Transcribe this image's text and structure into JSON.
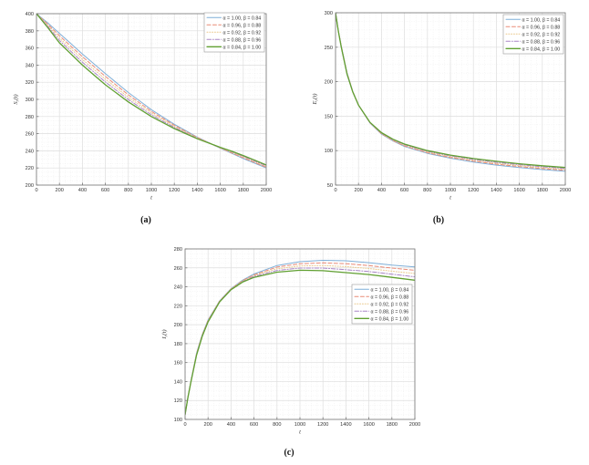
{
  "figure": {
    "captions": {
      "a": "(a)",
      "b": "(b)",
      "c": "(c)"
    }
  },
  "chart_data": [
    {
      "id": "a",
      "type": "line",
      "caption": "(a)",
      "xlabel": "t",
      "ylabel": {
        "base": "S",
        "sub": "r",
        "suffix": "(t)"
      },
      "xlim": [
        0,
        2000
      ],
      "ylim": [
        200,
        400
      ],
      "xticks": [
        0,
        200,
        400,
        600,
        800,
        1000,
        1200,
        1400,
        1600,
        1800,
        2000
      ],
      "yticks": [
        200,
        220,
        240,
        260,
        280,
        300,
        320,
        340,
        360,
        380,
        400
      ],
      "minor_x_step": 50,
      "minor_y_step": 5,
      "grid": "major+minor",
      "legend_position": "top-right",
      "x": [
        0,
        100,
        200,
        300,
        400,
        500,
        600,
        700,
        800,
        900,
        1000,
        1100,
        1200,
        1300,
        1400,
        1500,
        1600,
        1700,
        1800,
        1900,
        2000
      ],
      "series": [
        {
          "name": "α = 1.00, β = 0.84",
          "color": "#7FAFD8",
          "style": "solid",
          "lw": 1.0,
          "values": [
            400,
            389,
            377,
            365,
            353,
            341.5,
            330,
            319,
            308,
            298,
            288,
            279.5,
            271,
            263.5,
            256,
            249.5,
            243,
            237,
            231,
            225.5,
            220
          ]
        },
        {
          "name": "α = 0.96, β = 0.88",
          "color": "#E98B77",
          "style": "dashed",
          "lw": 1.0,
          "values": [
            400,
            387.6,
            374.3,
            362,
            349.8,
            338.3,
            326.8,
            316,
            305.3,
            295.6,
            286,
            277.9,
            269.8,
            262.6,
            255.5,
            249.4,
            243.3,
            237.6,
            231.9,
            226.4,
            220.9
          ]
        },
        {
          "name": "α = 0.92, β = 0.92",
          "color": "#EBC98C",
          "style": "dotted",
          "lw": 1.0,
          "values": [
            400,
            386.3,
            371.5,
            359,
            346.5,
            335,
            323.5,
            313,
            302.5,
            293.3,
            284,
            276.3,
            268.5,
            261.8,
            255,
            249.3,
            243.5,
            238.3,
            232.8,
            227.3,
            221.8
          ]
        },
        {
          "name": "α = 0.88, β = 0.96",
          "color": "#AA86C6",
          "style": "dashdot",
          "lw": 1.0,
          "values": [
            400,
            384.9,
            368.8,
            356,
            343.3,
            331.8,
            320.3,
            310,
            299.8,
            290.9,
            282,
            274.6,
            267.3,
            260.9,
            254.5,
            249.1,
            243.8,
            238.9,
            233.6,
            228.1,
            222.6
          ]
        },
        {
          "name": "α = 0.84, β = 1.00",
          "color": "#61A032",
          "style": "solid",
          "lw": 1.3,
          "values": [
            400,
            383.5,
            366,
            353,
            340,
            328.5,
            317,
            307,
            297,
            288.5,
            280,
            273,
            266,
            260,
            254,
            249,
            244,
            239.5,
            234.5,
            229,
            223.5
          ]
        }
      ]
    },
    {
      "id": "b",
      "type": "line",
      "caption": "(b)",
      "xlabel": "t",
      "ylabel": {
        "base": "E",
        "sub": "r",
        "suffix": "(t)"
      },
      "xlim": [
        0,
        2000
      ],
      "ylim": [
        50,
        300
      ],
      "xticks": [
        0,
        200,
        400,
        600,
        800,
        1000,
        1200,
        1400,
        1600,
        1800,
        2000
      ],
      "yticks": [
        50,
        100,
        150,
        200,
        250,
        300
      ],
      "minor_x_step": 50,
      "minor_y_step": 12.5,
      "grid": "major+minor",
      "legend_position": "top-right",
      "x": [
        0,
        25,
        50,
        100,
        150,
        200,
        300,
        400,
        500,
        600,
        800,
        1000,
        1200,
        1400,
        1600,
        1800,
        2000
      ],
      "series": [
        {
          "name": "α = 1.00, β = 0.84",
          "color": "#7FAFD8",
          "style": "solid",
          "lw": 1.0,
          "values": [
            300,
            274,
            252,
            213,
            186,
            166,
            140,
            124,
            114,
            106,
            96,
            89,
            83.5,
            79,
            75.5,
            72.5,
            70
          ]
        },
        {
          "name": "α = 0.96, β = 0.88",
          "color": "#E98B77",
          "style": "dashed",
          "lw": 1.0,
          "values": [
            300,
            273.8,
            251.5,
            212.5,
            185.8,
            166,
            140.3,
            124.5,
            114.6,
            106.9,
            97,
            90.1,
            84.8,
            80.4,
            76.9,
            73.9,
            71.4
          ]
        },
        {
          "name": "α = 0.92, β = 0.92",
          "color": "#EBC98C",
          "style": "dotted",
          "lw": 1.0,
          "values": [
            300,
            273.6,
            251,
            212,
            185.5,
            166,
            140.5,
            125,
            115.3,
            107.8,
            98,
            91.3,
            86,
            81.8,
            78.3,
            75.3,
            72.8
          ]
        },
        {
          "name": "α = 0.88, β = 0.96",
          "color": "#AA86C6",
          "style": "dashdot",
          "lw": 1.0,
          "values": [
            300,
            273.4,
            250.5,
            211.5,
            185.3,
            166,
            140.8,
            125.5,
            115.9,
            108.6,
            99,
            92.4,
            87.3,
            83.1,
            79.6,
            76.6,
            74.1
          ]
        },
        {
          "name": "α = 0.84, β = 1.00",
          "color": "#61A032",
          "style": "solid",
          "lw": 1.3,
          "values": [
            300,
            273,
            250,
            211,
            185,
            166,
            141,
            126,
            116.5,
            109.5,
            100,
            93.5,
            88.5,
            84.5,
            81,
            78,
            75.5
          ]
        }
      ]
    },
    {
      "id": "c",
      "type": "line",
      "caption": "(c)",
      "xlabel": "t",
      "ylabel": {
        "base": "I",
        "sub": "r",
        "suffix": "(t)"
      },
      "xlim": [
        0,
        2000
      ],
      "ylim": [
        100,
        280
      ],
      "xticks": [
        0,
        200,
        400,
        600,
        800,
        1000,
        1200,
        1400,
        1600,
        1800,
        2000
      ],
      "yticks": [
        100,
        120,
        140,
        160,
        180,
        200,
        220,
        240,
        260,
        280
      ],
      "minor_x_step": 50,
      "minor_y_step": 5,
      "grid": "major+minor",
      "legend_position": "mid-right",
      "x": [
        0,
        25,
        50,
        100,
        150,
        200,
        300,
        400,
        500,
        600,
        800,
        1000,
        1200,
        1400,
        1600,
        1800,
        2000
      ],
      "series": [
        {
          "name": "α = 1.00, β = 0.84",
          "color": "#7FAFD8",
          "style": "solid",
          "lw": 1.0,
          "values": [
            105,
            124,
            140,
            170,
            190,
            205,
            225,
            238,
            247,
            253.5,
            262.5,
            266.5,
            268,
            267.5,
            265.5,
            263,
            261
          ]
        },
        {
          "name": "α = 0.96, β = 0.88",
          "color": "#E98B77",
          "style": "dashed",
          "lw": 1.0,
          "values": [
            105,
            123.8,
            139.8,
            169.5,
            189.5,
            204.5,
            224.8,
            237.8,
            246.5,
            252.6,
            260.8,
            264.3,
            265.3,
            264.4,
            262.4,
            259.8,
            257.5
          ]
        },
        {
          "name": "α = 0.92, β = 0.92",
          "color": "#EBC98C",
          "style": "dotted",
          "lw": 1.0,
          "values": [
            105,
            123.6,
            139.5,
            169,
            189,
            204,
            224.5,
            237.5,
            246,
            251.8,
            259,
            262,
            262.5,
            261.3,
            259.3,
            256.5,
            254
          ]
        },
        {
          "name": "α = 0.88, β = 0.96",
          "color": "#AA86C6",
          "style": "dashdot",
          "lw": 1.0,
          "values": [
            105,
            123.4,
            139.3,
            168.5,
            188.5,
            203.5,
            224.3,
            237.3,
            245.5,
            250.9,
            257.3,
            259.8,
            259.8,
            258.1,
            256.1,
            253.3,
            250.5
          ]
        },
        {
          "name": "α = 0.84, β = 1.00",
          "color": "#61A032",
          "style": "solid",
          "lw": 1.3,
          "values": [
            105,
            123,
            139,
            168,
            188,
            203,
            224,
            237,
            245,
            250,
            255.5,
            257.5,
            257,
            255,
            253,
            250,
            247
          ]
        }
      ]
    }
  ],
  "style_colors": {
    "grid_major": "#dedede",
    "grid_minor": "#ececec",
    "axis_box": "#777777",
    "tick_text": "#333333",
    "legend_border": "#999999"
  }
}
